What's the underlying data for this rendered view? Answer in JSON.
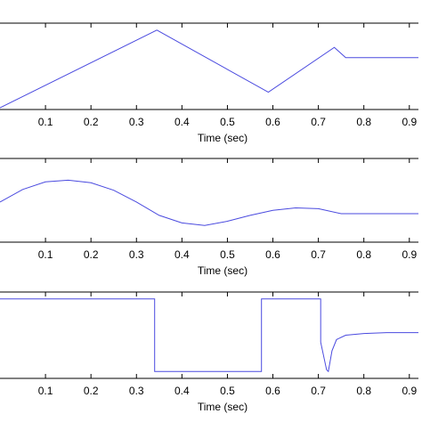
{
  "chart_data": [
    {
      "type": "line",
      "xlabel": "Time (sec)",
      "xlim": [
        0,
        0.92
      ],
      "xticks": [
        0.1,
        0.2,
        0.3,
        0.4,
        0.5,
        0.6,
        0.7,
        0.8,
        0.9
      ],
      "xtick_labels": [
        "0.1",
        "0.2",
        "0.3",
        "0.4",
        "0.5",
        "0.6",
        "0.7",
        "0.8",
        "0.9"
      ],
      "ylim": [
        0,
        1
      ],
      "grid": false,
      "line_color": "#4a4adf",
      "series": [
        {
          "x": [
            0,
            0.345,
            0.59,
            0.735,
            0.76,
            0.92
          ],
          "y": [
            0.02,
            0.92,
            0.2,
            0.72,
            0.6,
            0.6
          ]
        }
      ]
    },
    {
      "type": "line",
      "xlabel": "Time (sec)",
      "xlim": [
        0,
        0.92
      ],
      "xticks": [
        0.1,
        0.2,
        0.3,
        0.4,
        0.5,
        0.6,
        0.7,
        0.8,
        0.9
      ],
      "xtick_labels": [
        "0.1",
        "0.2",
        "0.3",
        "0.4",
        "0.5",
        "0.6",
        "0.7",
        "0.8",
        "0.9"
      ],
      "ylim": [
        0,
        1
      ],
      "grid": false,
      "line_color": "#4a4adf",
      "series": [
        {
          "x": [
            0,
            0.05,
            0.1,
            0.15,
            0.2,
            0.25,
            0.3,
            0.35,
            0.4,
            0.45,
            0.5,
            0.55,
            0.6,
            0.65,
            0.7,
            0.75,
            0.8,
            0.85,
            0.92
          ],
          "y": [
            0.48,
            0.63,
            0.72,
            0.74,
            0.71,
            0.62,
            0.48,
            0.32,
            0.23,
            0.2,
            0.25,
            0.32,
            0.38,
            0.41,
            0.4,
            0.34,
            0.34,
            0.34,
            0.34
          ]
        }
      ]
    },
    {
      "type": "line",
      "xlabel": "Time (sec)",
      "xlim": [
        0,
        0.92
      ],
      "xticks": [
        0.1,
        0.2,
        0.3,
        0.4,
        0.5,
        0.6,
        0.7,
        0.8,
        0.9
      ],
      "xtick_labels": [
        "0.1",
        "0.2",
        "0.3",
        "0.4",
        "0.5",
        "0.6",
        "0.7",
        "0.8",
        "0.9"
      ],
      "ylim": [
        0,
        1
      ],
      "grid": false,
      "line_color": "#4a4adf",
      "series": [
        {
          "x": [
            0,
            0.34,
            0.34,
            0.575,
            0.575,
            0.705,
            0.705,
            0.718,
            0.722,
            0.73,
            0.74,
            0.76,
            0.8,
            0.85,
            0.92
          ],
          "y": [
            0.92,
            0.92,
            0.08,
            0.08,
            0.92,
            0.92,
            0.42,
            0.1,
            0.08,
            0.32,
            0.45,
            0.5,
            0.52,
            0.53,
            0.53
          ]
        }
      ]
    }
  ]
}
